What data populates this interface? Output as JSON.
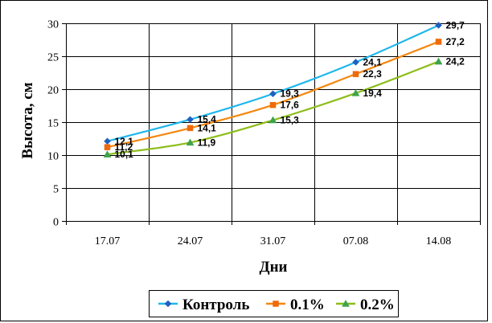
{
  "chart_data": {
    "type": "line",
    "title": "",
    "xlabel": "Дни",
    "ylabel": "Высота, см",
    "categories": [
      "17.07",
      "24.07",
      "31.07",
      "07.08",
      "14.08"
    ],
    "ylim": [
      0,
      30
    ],
    "yticks": [
      0,
      5,
      10,
      15,
      20,
      25,
      30
    ],
    "grid": true,
    "legend_position": "bottom",
    "series": [
      {
        "name": "Контроль",
        "values": [
          12.1,
          15.4,
          19.3,
          24.1,
          29.7
        ],
        "labels": [
          "12,1",
          "15,4",
          "19,3",
          "24,1",
          "29,7"
        ],
        "color": "#1fb7ec",
        "marker_color": "#1f5fbf",
        "marker": "diamond"
      },
      {
        "name": "0.1%",
        "values": [
          11.2,
          14.1,
          17.6,
          22.3,
          27.2
        ],
        "labels": [
          "11,2",
          "14,1",
          "17,6",
          "22,3",
          "27,2"
        ],
        "color": "#f5870f",
        "marker_color": "#ee6a0c",
        "marker": "square"
      },
      {
        "name": "0.2%",
        "values": [
          10.1,
          11.9,
          15.3,
          19.4,
          24.2
        ],
        "labels": [
          "10,1",
          "11,9",
          "15,3",
          "19,4",
          "24,2"
        ],
        "color": "#8cbd1a",
        "marker_color": "#3fa34a",
        "marker": "triangle"
      }
    ]
  }
}
